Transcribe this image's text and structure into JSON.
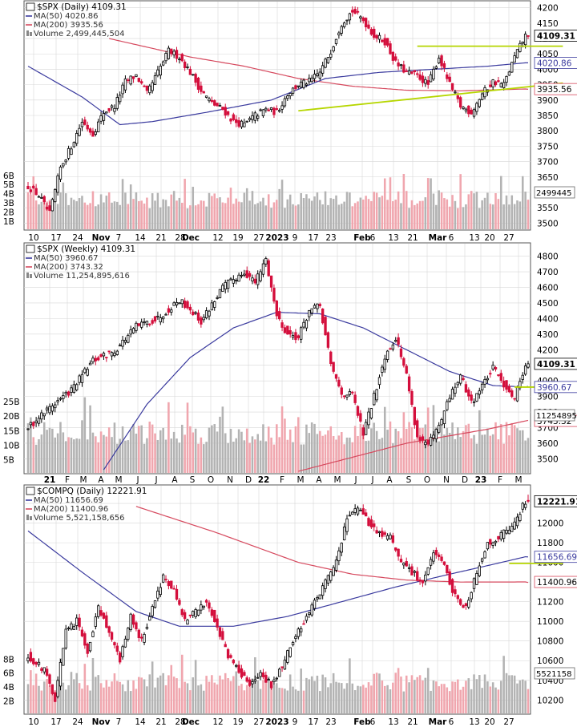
{
  "colors": {
    "up": "#000000",
    "down": "#d40f3c",
    "ma50": "#3a3a9e",
    "ma200": "#d6495e",
    "trend": "#b6d600",
    "vol_up": "#b3b3b3",
    "vol_down": "#f0a6ae",
    "grid": "#d7d7d7"
  },
  "chart_data": [
    {
      "type": "candlestick",
      "title_symbol": "$SPX",
      "title_period": "(Daily)",
      "title_last": "4109.31",
      "legend": [
        {
          "label": "MA(50)",
          "value": "4020.86",
          "color": "#3a3a9e"
        },
        {
          "label": "MA(200)",
          "value": "3935.56",
          "color": "#d6495e"
        },
        {
          "label": "Volume",
          "value": "2,499,445,504",
          "color": "#888888"
        }
      ],
      "ylim": [
        3480,
        4220
      ],
      "y_ticks": [
        "4200",
        "4150",
        "4100",
        "4050",
        "4000",
        "3950",
        "3900",
        "3850",
        "3800",
        "3750",
        "3700",
        "3650",
        "3600",
        "3550",
        "3500"
      ],
      "vol_ticks": [
        "6B",
        "5B",
        "4B",
        "3B",
        "2B",
        "1B"
      ],
      "x_ticks": [
        "10",
        "17",
        "24",
        "Nov",
        "7",
        "14",
        "21",
        "28",
        "Dec",
        "12",
        "19",
        "27",
        "2023",
        "9",
        "17",
        "23",
        "Feb",
        "6",
        "13",
        "21",
        "Mar",
        "6",
        "13",
        "20",
        "27"
      ],
      "price_tags": [
        {
          "text": "4109.31",
          "value": 4109.31,
          "style": "last"
        },
        {
          "text": "4020.86",
          "value": 4020.86,
          "style": "ma50"
        },
        {
          "text": "3935.56",
          "value": 3935.56,
          "style": "ma200"
        }
      ],
      "vol_tag": "2499445",
      "anchors": [
        [
          0,
          3620
        ],
        [
          4,
          3590
        ],
        [
          8,
          3530
        ],
        [
          12,
          3680
        ],
        [
          16,
          3750
        ],
        [
          20,
          3830
        ],
        [
          24,
          3790
        ],
        [
          28,
          3860
        ],
        [
          32,
          3880
        ],
        [
          36,
          3960
        ],
        [
          40,
          3980
        ],
        [
          44,
          3920
        ],
        [
          48,
          3990
        ],
        [
          52,
          4060
        ],
        [
          56,
          4040
        ],
        [
          60,
          3990
        ],
        [
          64,
          3930
        ],
        [
          68,
          3890
        ],
        [
          72,
          3870
        ],
        [
          76,
          3830
        ],
        [
          80,
          3820
        ],
        [
          84,
          3850
        ],
        [
          88,
          3870
        ],
        [
          92,
          3860
        ],
        [
          96,
          3920
        ],
        [
          100,
          3950
        ],
        [
          104,
          3960
        ],
        [
          108,
          3990
        ],
        [
          112,
          4060
        ],
        [
          116,
          4150
        ],
        [
          120,
          4190
        ],
        [
          124,
          4160
        ],
        [
          128,
          4110
        ],
        [
          132,
          4090
        ],
        [
          136,
          4020
        ],
        [
          140,
          3990
        ],
        [
          144,
          3980
        ],
        [
          148,
          3950
        ],
        [
          152,
          4040
        ],
        [
          156,
          3950
        ],
        [
          160,
          3880
        ],
        [
          164,
          3860
        ],
        [
          168,
          3920
        ],
        [
          172,
          3960
        ],
        [
          176,
          3950
        ],
        [
          180,
          4040
        ],
        [
          184,
          4109
        ]
      ],
      "ma50": [
        [
          0,
          4010
        ],
        [
          20,
          3910
        ],
        [
          34,
          3820
        ],
        [
          46,
          3830
        ],
        [
          66,
          3860
        ],
        [
          90,
          3900
        ],
        [
          110,
          3970
        ],
        [
          130,
          3990
        ],
        [
          150,
          4000
        ],
        [
          170,
          4010
        ],
        [
          184,
          4021
        ]
      ],
      "ma200": [
        [
          30,
          4100
        ],
        [
          60,
          4040
        ],
        [
          80,
          4010
        ],
        [
          100,
          3970
        ],
        [
          120,
          3945
        ],
        [
          140,
          3932
        ],
        [
          160,
          3930
        ],
        [
          184,
          3936
        ]
      ],
      "trendlines": [
        {
          "from": [
            100,
            3865
          ],
          "to": [
            186,
            3955
          ]
        },
        {
          "from": [
            144,
            4075
          ],
          "to": [
            186,
            4075
          ]
        }
      ]
    },
    {
      "type": "candlestick",
      "title_symbol": "$SPX",
      "title_period": "(Weekly)",
      "title_last": "4109.31",
      "legend": [
        {
          "label": "MA(50)",
          "value": "3960.67",
          "color": "#3a3a9e"
        },
        {
          "label": "MA(200)",
          "value": "3743.32",
          "color": "#d6495e"
        },
        {
          "label": "Volume",
          "value": "11,254,895,616",
          "color": "#888888"
        }
      ],
      "ylim": [
        3420,
        4880
      ],
      "y_ticks": [
        "4800",
        "4700",
        "4600",
        "4500",
        "4400",
        "4300",
        "4200",
        "4100",
        "4000",
        "3900",
        "3800",
        "3700",
        "3600",
        "3500"
      ],
      "vol_ticks": [
        "25B",
        "20B",
        "15B",
        "10B",
        "5B"
      ],
      "x_ticks": [
        "21",
        "F",
        "M",
        "A",
        "M",
        "J",
        "J",
        "A",
        "S",
        "O",
        "N",
        "D",
        "22",
        "F",
        "M",
        "A",
        "M",
        "J",
        "J",
        "A",
        "S",
        "O",
        "N",
        "D",
        "23",
        "F",
        "M"
      ],
      "price_tags": [
        {
          "text": "4109.31",
          "value": 4109.31,
          "style": "last"
        },
        {
          "text": "3960.67",
          "value": 3960.67,
          "style": "ma50"
        },
        {
          "text": "3743.32",
          "value": 3743.32,
          "style": "ma200"
        }
      ],
      "vol_tag": "11254895",
      "anchors": [
        [
          0,
          3700
        ],
        [
          8,
          3830
        ],
        [
          16,
          3940
        ],
        [
          24,
          4130
        ],
        [
          32,
          4190
        ],
        [
          40,
          4350
        ],
        [
          48,
          4400
        ],
        [
          56,
          4520
        ],
        [
          60,
          4460
        ],
        [
          64,
          4380
        ],
        [
          72,
          4600
        ],
        [
          80,
          4700
        ],
        [
          84,
          4630
        ],
        [
          88,
          4780
        ],
        [
          92,
          4420
        ],
        [
          96,
          4300
        ],
        [
          100,
          4280
        ],
        [
          104,
          4450
        ],
        [
          108,
          4480
        ],
        [
          112,
          4100
        ],
        [
          116,
          3920
        ],
        [
          120,
          3910
        ],
        [
          124,
          3660
        ],
        [
          128,
          3900
        ],
        [
          132,
          4160
        ],
        [
          136,
          4280
        ],
        [
          140,
          4040
        ],
        [
          144,
          3640
        ],
        [
          148,
          3590
        ],
        [
          152,
          3700
        ],
        [
          156,
          3900
        ],
        [
          160,
          4030
        ],
        [
          164,
          3860
        ],
        [
          168,
          3970
        ],
        [
          172,
          4080
        ],
        [
          176,
          3980
        ],
        [
          180,
          3890
        ],
        [
          184,
          4109
        ]
      ],
      "ma50": [
        [
          28,
          3430
        ],
        [
          44,
          3850
        ],
        [
          60,
          4150
        ],
        [
          76,
          4340
        ],
        [
          92,
          4440
        ],
        [
          108,
          4430
        ],
        [
          124,
          4340
        ],
        [
          140,
          4200
        ],
        [
          156,
          4060
        ],
        [
          172,
          3970
        ],
        [
          184,
          3961
        ]
      ],
      "ma200": [
        [
          100,
          3420
        ],
        [
          140,
          3600
        ],
        [
          170,
          3690
        ],
        [
          184,
          3743
        ]
      ],
      "trendlines": [
        {
          "from": [
            180,
            3960
          ],
          "to": [
            188,
            3960
          ]
        }
      ]
    },
    {
      "type": "candlestick",
      "title_symbol": "$COMPQ",
      "title_period": "(Daily)",
      "title_last": "12221.91",
      "legend": [
        {
          "label": "MA(50)",
          "value": "11656.69",
          "color": "#3a3a9e"
        },
        {
          "label": "MA(200)",
          "value": "11400.96",
          "color": "#d6495e"
        },
        {
          "label": "Volume",
          "value": "5,521,158,656",
          "color": "#888888"
        }
      ],
      "ylim": [
        10080,
        12380
      ],
      "y_ticks": [
        "12200",
        "12000",
        "11800",
        "11600",
        "11400",
        "11200",
        "11000",
        "10800",
        "10600",
        "10400",
        "10200"
      ],
      "vol_ticks": [
        "8B",
        "6B",
        "4B",
        "2B"
      ],
      "x_ticks": [
        "10",
        "17",
        "24",
        "Nov",
        "7",
        "14",
        "21",
        "28",
        "Dec",
        "12",
        "19",
        "27",
        "2023",
        "9",
        "17",
        "23",
        "Feb",
        "6",
        "13",
        "21",
        "Mar",
        "6",
        "13",
        "20",
        "27"
      ],
      "price_tags": [
        {
          "text": "12221.91",
          "value": 12221.91,
          "style": "last"
        },
        {
          "text": "11656.69",
          "value": 11656.69,
          "style": "ma50"
        },
        {
          "text": "11400.96",
          "value": 11400.96,
          "style": "ma200"
        }
      ],
      "vol_tag": "5521158",
      "anchors": [
        [
          0,
          10650
        ],
        [
          6,
          10500
        ],
        [
          10,
          10200
        ],
        [
          14,
          10900
        ],
        [
          18,
          11000
        ],
        [
          22,
          10700
        ],
        [
          26,
          11150
        ],
        [
          30,
          10900
        ],
        [
          34,
          10600
        ],
        [
          38,
          11050
        ],
        [
          42,
          10800
        ],
        [
          46,
          11150
        ],
        [
          50,
          11450
        ],
        [
          54,
          11300
        ],
        [
          58,
          11000
        ],
        [
          62,
          11100
        ],
        [
          66,
          11200
        ],
        [
          70,
          10950
        ],
        [
          74,
          10650
        ],
        [
          78,
          10500
        ],
        [
          82,
          10350
        ],
        [
          86,
          10450
        ],
        [
          90,
          10350
        ],
        [
          94,
          10550
        ],
        [
          98,
          10800
        ],
        [
          102,
          11000
        ],
        [
          106,
          11200
        ],
        [
          110,
          11400
        ],
        [
          114,
          11600
        ],
        [
          118,
          12050
        ],
        [
          122,
          12150
        ],
        [
          126,
          12000
        ],
        [
          130,
          11900
        ],
        [
          134,
          11850
        ],
        [
          138,
          11600
        ],
        [
          142,
          11500
        ],
        [
          146,
          11400
        ],
        [
          150,
          11700
        ],
        [
          154,
          11550
        ],
        [
          158,
          11250
        ],
        [
          162,
          11150
        ],
        [
          166,
          11500
        ],
        [
          170,
          11800
        ],
        [
          174,
          11850
        ],
        [
          180,
          12000
        ],
        [
          184,
          12222
        ]
      ],
      "ma50": [
        [
          0,
          11920
        ],
        [
          20,
          11500
        ],
        [
          40,
          11100
        ],
        [
          56,
          10950
        ],
        [
          76,
          10950
        ],
        [
          96,
          11050
        ],
        [
          116,
          11200
        ],
        [
          136,
          11350
        ],
        [
          156,
          11480
        ],
        [
          172,
          11580
        ],
        [
          184,
          11657
        ]
      ],
      "ma200": [
        [
          40,
          12170
        ],
        [
          70,
          11900
        ],
        [
          100,
          11600
        ],
        [
          120,
          11480
        ],
        [
          140,
          11420
        ],
        [
          160,
          11400
        ],
        [
          184,
          11401
        ]
      ],
      "trendlines": [
        {
          "from": [
            178,
            11590
          ],
          "to": [
            186,
            11590
          ]
        }
      ]
    }
  ]
}
